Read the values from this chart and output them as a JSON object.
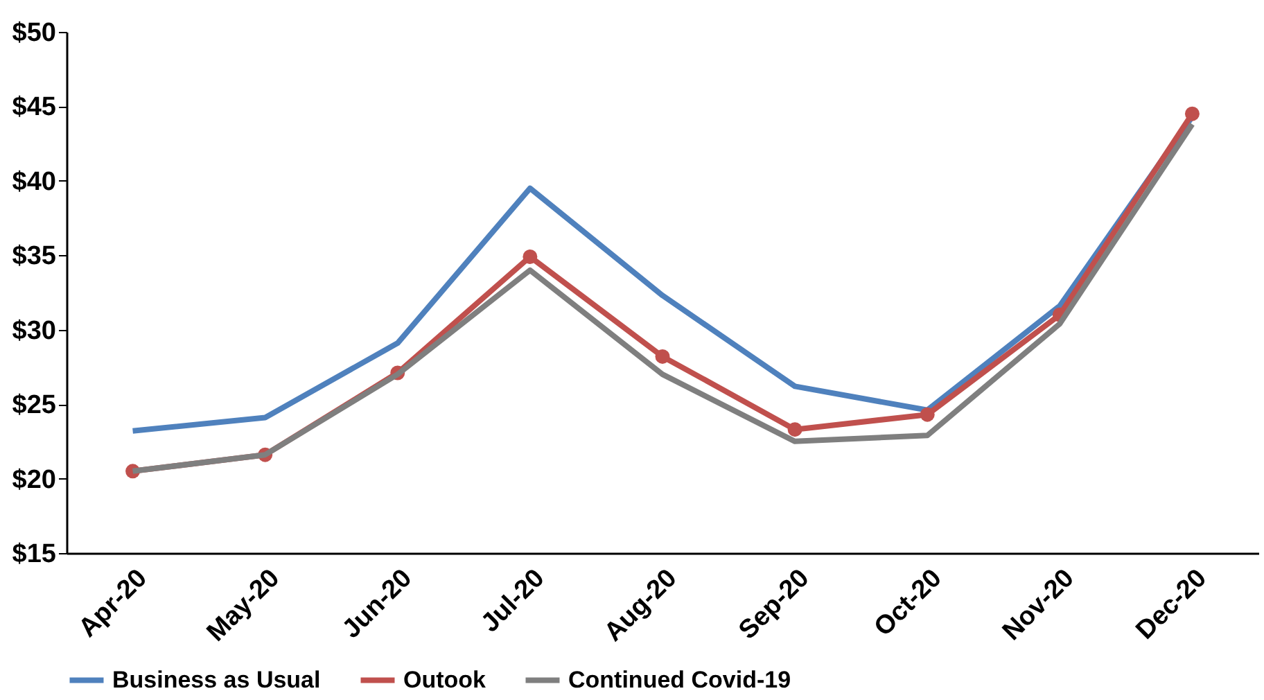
{
  "chart_data": {
    "type": "line",
    "categories": [
      "Apr-20",
      "May-20",
      "Jun-20",
      "Jul-20",
      "Aug-20",
      "Sep-20",
      "Oct-20",
      "Nov-20",
      "Dec-20"
    ],
    "series": [
      {
        "name": "Business as Usual",
        "color": "#4f81bd",
        "values": [
          23.2,
          24.1,
          29.1,
          39.5,
          32.3,
          26.2,
          24.6,
          31.6,
          44.3
        ]
      },
      {
        "name": "Outook",
        "color": "#c0504d",
        "marker": "circle",
        "values": [
          20.5,
          21.6,
          27.1,
          34.9,
          28.2,
          23.3,
          24.3,
          31.0,
          44.5
        ]
      },
      {
        "name": "Continued Covid-19",
        "color": "#7f7f7f",
        "values": [
          20.5,
          21.6,
          27.0,
          34.0,
          27.0,
          22.5,
          22.9,
          30.4,
          43.8
        ]
      }
    ],
    "ylim": [
      15,
      50
    ],
    "yticks": [
      {
        "value": 15,
        "label": "$15"
      },
      {
        "value": 20,
        "label": "$20"
      },
      {
        "value": 25,
        "label": "$25"
      },
      {
        "value": 30,
        "label": "$30"
      },
      {
        "value": 35,
        "label": "$35"
      },
      {
        "value": 40,
        "label": "$40"
      },
      {
        "value": 45,
        "label": "$45"
      },
      {
        "value": 50,
        "label": "$50"
      }
    ],
    "legend": "bottom",
    "grid": false,
    "line_style": "solid"
  }
}
